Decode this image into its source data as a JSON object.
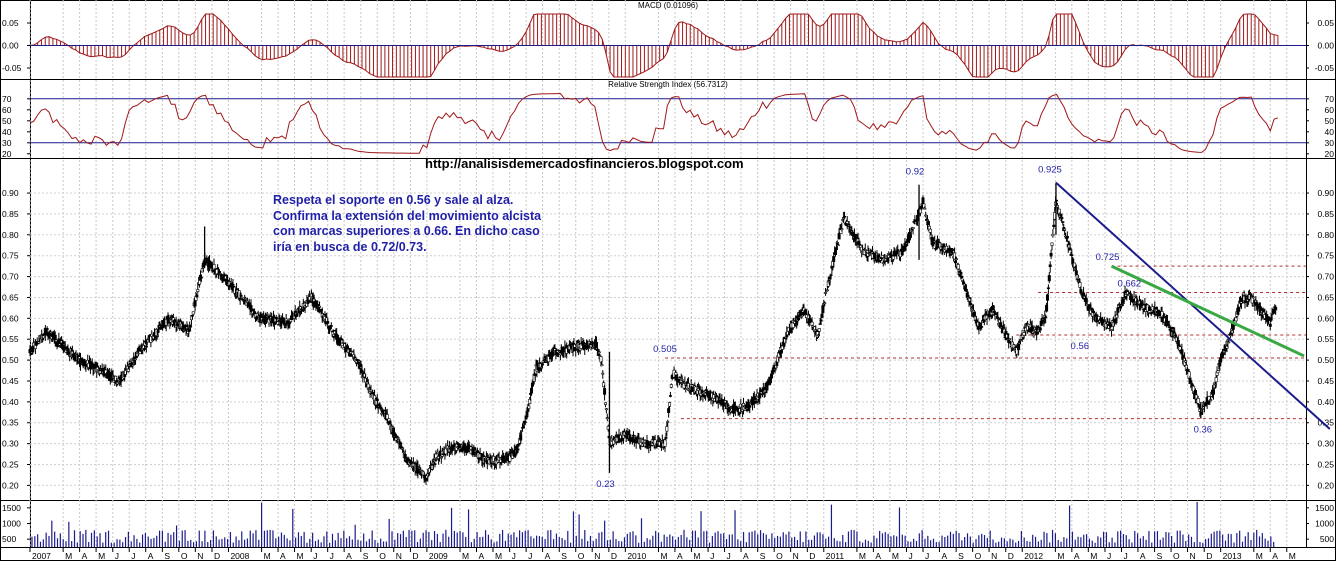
{
  "chart_data": [
    {
      "type": "bar",
      "title": "MACD (0.01096)",
      "yticks": [
        "0.05",
        "0.00",
        "-0.05"
      ],
      "ylim": [
        -0.07,
        0.07
      ],
      "colors": {
        "histogram": "#a01818",
        "line": "#a01818",
        "zero_line": "#1b1b8c"
      }
    },
    {
      "type": "line",
      "title": "Relative Strength Index (56.7312)",
      "yticks": [
        "70",
        "60",
        "50",
        "40",
        "30",
        "20"
      ],
      "ylim": [
        18,
        78
      ],
      "levels": [
        70,
        30
      ],
      "colors": {
        "line": "#a01818",
        "level_lines": "#1b1b8c"
      }
    },
    {
      "type": "candlestick",
      "watermark": "http://analisisdemercadosfinancieros.blogspot.com",
      "yticks": [
        "0.90",
        "0.85",
        "0.80",
        "0.75",
        "0.70",
        "0.65",
        "0.60",
        "0.55",
        "0.50",
        "0.45",
        "0.40",
        "0.35",
        "0.30",
        "0.25",
        "0.20"
      ],
      "ylim": [
        0.165,
        0.96
      ],
      "price_path": [
        [
          2007.0,
          0.52
        ],
        [
          2007.08,
          0.57
        ],
        [
          2007.25,
          0.5
        ],
        [
          2007.45,
          0.45
        ],
        [
          2007.55,
          0.52
        ],
        [
          2007.7,
          0.6
        ],
        [
          2007.8,
          0.57
        ],
        [
          2007.88,
          0.74
        ],
        [
          2007.95,
          0.71
        ],
        [
          2008.05,
          0.66
        ],
        [
          2008.15,
          0.6
        ],
        [
          2008.3,
          0.59
        ],
        [
          2008.42,
          0.65
        ],
        [
          2008.55,
          0.55
        ],
        [
          2008.65,
          0.5
        ],
        [
          2008.72,
          0.42
        ],
        [
          2008.8,
          0.36
        ],
        [
          2008.9,
          0.26
        ],
        [
          2009.0,
          0.22
        ],
        [
          2009.05,
          0.27
        ],
        [
          2009.12,
          0.29
        ],
        [
          2009.2,
          0.29
        ],
        [
          2009.3,
          0.26
        ],
        [
          2009.4,
          0.26
        ],
        [
          2009.45,
          0.28
        ],
        [
          2009.5,
          0.36
        ],
        [
          2009.55,
          0.48
        ],
        [
          2009.65,
          0.52
        ],
        [
          2009.75,
          0.53
        ],
        [
          2009.85,
          0.54
        ],
        [
          2009.88,
          0.5
        ],
        [
          2009.92,
          0.3
        ],
        [
          2010.0,
          0.32
        ],
        [
          2010.1,
          0.3
        ],
        [
          2010.2,
          0.3
        ],
        [
          2010.24,
          0.47
        ],
        [
          2010.3,
          0.44
        ],
        [
          2010.45,
          0.41
        ],
        [
          2010.55,
          0.38
        ],
        [
          2010.62,
          0.39
        ],
        [
          2010.72,
          0.44
        ],
        [
          2010.82,
          0.57
        ],
        [
          2010.9,
          0.62
        ],
        [
          2010.97,
          0.56
        ],
        [
          2011.02,
          0.68
        ],
        [
          2011.1,
          0.84
        ],
        [
          2011.2,
          0.76
        ],
        [
          2011.3,
          0.74
        ],
        [
          2011.4,
          0.76
        ],
        [
          2011.47,
          0.84
        ],
        [
          2011.5,
          0.88
        ],
        [
          2011.55,
          0.78
        ],
        [
          2011.65,
          0.76
        ],
        [
          2011.72,
          0.66
        ],
        [
          2011.78,
          0.58
        ],
        [
          2011.85,
          0.62
        ],
        [
          2011.92,
          0.56
        ],
        [
          2011.97,
          0.52
        ],
        [
          2012.02,
          0.58
        ],
        [
          2012.08,
          0.57
        ],
        [
          2012.12,
          0.61
        ],
        [
          2012.17,
          0.88
        ],
        [
          2012.22,
          0.8
        ],
        [
          2012.3,
          0.66
        ],
        [
          2012.37,
          0.6
        ],
        [
          2012.45,
          0.58
        ],
        [
          2012.52,
          0.66
        ],
        [
          2012.6,
          0.63
        ],
        [
          2012.7,
          0.61
        ],
        [
          2012.78,
          0.55
        ],
        [
          2012.85,
          0.45
        ],
        [
          2012.9,
          0.38
        ],
        [
          2012.96,
          0.42
        ],
        [
          2013.0,
          0.5
        ],
        [
          2013.05,
          0.56
        ],
        [
          2013.1,
          0.64
        ],
        [
          2013.15,
          0.65
        ],
        [
          2013.2,
          0.62
        ],
        [
          2013.25,
          0.59
        ],
        [
          2013.28,
          0.63
        ]
      ],
      "xaxis": [
        {
          "label": "2007",
          "t": 2007.0
        },
        {
          "label": "M",
          "t": 2007.167
        },
        {
          "label": "A",
          "t": 2007.25
        },
        {
          "label": "M",
          "t": 2007.333
        },
        {
          "label": "J",
          "t": 2007.417
        },
        {
          "label": "J",
          "t": 2007.5
        },
        {
          "label": "A",
          "t": 2007.583
        },
        {
          "label": "S",
          "t": 2007.667
        },
        {
          "label": "O",
          "t": 2007.75
        },
        {
          "label": "N",
          "t": 2007.833
        },
        {
          "label": "D",
          "t": 2007.917
        },
        {
          "label": "2008",
          "t": 2008.0
        },
        {
          "label": "M",
          "t": 2008.167
        },
        {
          "label": "A",
          "t": 2008.25
        },
        {
          "label": "M",
          "t": 2008.333
        },
        {
          "label": "J",
          "t": 2008.417
        },
        {
          "label": "J",
          "t": 2008.5
        },
        {
          "label": "A",
          "t": 2008.583
        },
        {
          "label": "S",
          "t": 2008.667
        },
        {
          "label": "O",
          "t": 2008.75
        },
        {
          "label": "N",
          "t": 2008.833
        },
        {
          "label": "D",
          "t": 2008.917
        },
        {
          "label": "2009",
          "t": 2009.0
        },
        {
          "label": "M",
          "t": 2009.167
        },
        {
          "label": "A",
          "t": 2009.25
        },
        {
          "label": "M",
          "t": 2009.333
        },
        {
          "label": "J",
          "t": 2009.417
        },
        {
          "label": "J",
          "t": 2009.5
        },
        {
          "label": "A",
          "t": 2009.583
        },
        {
          "label": "S",
          "t": 2009.667
        },
        {
          "label": "O",
          "t": 2009.75
        },
        {
          "label": "N",
          "t": 2009.833
        },
        {
          "label": "D",
          "t": 2009.917
        },
        {
          "label": "2010",
          "t": 2010.0
        },
        {
          "label": "M",
          "t": 2010.167
        },
        {
          "label": "A",
          "t": 2010.25
        },
        {
          "label": "M",
          "t": 2010.333
        },
        {
          "label": "J",
          "t": 2010.417
        },
        {
          "label": "J",
          "t": 2010.5
        },
        {
          "label": "A",
          "t": 2010.583
        },
        {
          "label": "S",
          "t": 2010.667
        },
        {
          "label": "O",
          "t": 2010.75
        },
        {
          "label": "N",
          "t": 2010.833
        },
        {
          "label": "D",
          "t": 2010.917
        },
        {
          "label": "2011",
          "t": 2011.0
        },
        {
          "label": "M",
          "t": 2011.167
        },
        {
          "label": "A",
          "t": 2011.25
        },
        {
          "label": "M",
          "t": 2011.333
        },
        {
          "label": "J",
          "t": 2011.417
        },
        {
          "label": "J",
          "t": 2011.5
        },
        {
          "label": "A",
          "t": 2011.583
        },
        {
          "label": "S",
          "t": 2011.667
        },
        {
          "label": "O",
          "t": 2011.75
        },
        {
          "label": "N",
          "t": 2011.833
        },
        {
          "label": "D",
          "t": 2011.917
        },
        {
          "label": "2012",
          "t": 2012.0
        },
        {
          "label": "M",
          "t": 2012.167
        },
        {
          "label": "A",
          "t": 2012.25
        },
        {
          "label": "M",
          "t": 2012.333
        },
        {
          "label": "J",
          "t": 2012.417
        },
        {
          "label": "J",
          "t": 2012.5
        },
        {
          "label": "A",
          "t": 2012.583
        },
        {
          "label": "S",
          "t": 2012.667
        },
        {
          "label": "O",
          "t": 2012.75
        },
        {
          "label": "N",
          "t": 2012.833
        },
        {
          "label": "D",
          "t": 2012.917
        },
        {
          "label": "2013",
          "t": 2013.0
        },
        {
          "label": "M",
          "t": 2013.167
        },
        {
          "label": "A",
          "t": 2013.25
        },
        {
          "label": "M",
          "t": 2013.333
        }
      ],
      "levels": [
        {
          "price": 0.725,
          "from": 2012.45,
          "color": "#b03030"
        },
        {
          "price": 0.662,
          "from": 2012.08,
          "color": "#b03030"
        },
        {
          "price": 0.56,
          "from": 2011.97,
          "color": "#b03030"
        },
        {
          "price": 0.505,
          "from": 2010.2,
          "color": "#b03030"
        },
        {
          "price": 0.36,
          "from": 2010.28,
          "color": "#b03030"
        }
      ],
      "trendlines": [
        {
          "name": "bajista",
          "from": [
            2012.17,
            0.925
          ],
          "to": [
            2013.55,
            0.335
          ],
          "color": "#1b1b8c"
        },
        {
          "name": "lateral",
          "from": [
            2012.45,
            0.725
          ],
          "to": [
            2013.42,
            0.51
          ],
          "color": "#3aa843"
        }
      ],
      "point_labels": [
        {
          "text": "0.92",
          "t": 2011.48,
          "price": 0.92
        },
        {
          "text": "0.925",
          "t": 2012.17,
          "price": 0.925
        },
        {
          "text": "0.725",
          "t": 2012.45,
          "price": 0.725
        },
        {
          "text": "0.662",
          "t": 2012.57,
          "price": 0.662
        },
        {
          "text": "0.56",
          "t": 2012.28,
          "price": 0.56
        },
        {
          "text": "0.505",
          "t": 2010.2,
          "price": 0.505
        },
        {
          "text": "0.36",
          "t": 2012.9,
          "price": 0.36
        },
        {
          "text": "0.23",
          "t": 2009.92,
          "price": 0.23
        }
      ],
      "annotation": "Respeta el soporte en 0.56 y sale al alza.\nConfirma la extensión del movimiento alcista\ncon marcas superiores a 0.66. En dicho caso\niría en busca de 0.72/0.73.",
      "colors": {
        "candle": "#000000",
        "support": "#b03030",
        "downtrend": "#1b1b8c",
        "green_line": "#3aa843",
        "label": "#1f1fa8"
      }
    },
    {
      "type": "bar",
      "title": "",
      "yticks": [
        "1500",
        "1000",
        "500"
      ],
      "ylim": [
        250,
        1750
      ],
      "colors": {
        "bar": "#1b1b8c"
      }
    }
  ]
}
